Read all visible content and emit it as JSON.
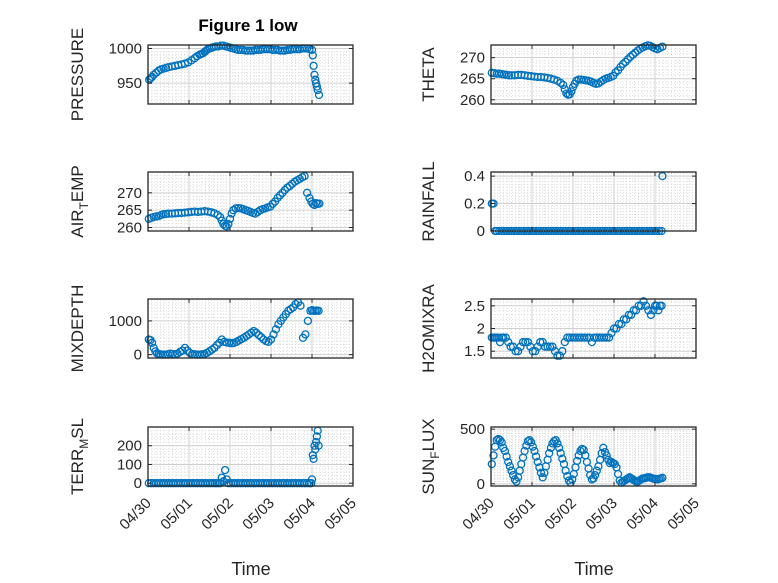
{
  "figure": {
    "title": "Figure 1 low",
    "xlabel": "Time"
  },
  "chart_data": [
    {
      "type": "scatter",
      "ylabel": "PRESSURE",
      "ylim": [
        920,
        1005
      ],
      "yticks": [
        950,
        1000
      ],
      "xlim": [
        0,
        5
      ],
      "xticks": [
        "04/30",
        "05/01",
        "05/02",
        "05/03",
        "05/04",
        "05/05"
      ],
      "show_xticks": false,
      "x": [
        0.03,
        0.06,
        0.1,
        0.14,
        0.2,
        0.26,
        0.32,
        0.38,
        0.44,
        0.5,
        0.58,
        0.66,
        0.74,
        0.82,
        0.9,
        0.98,
        1.06,
        1.14,
        1.2,
        1.26,
        1.3,
        1.34,
        1.38,
        1.42,
        1.46,
        1.5,
        1.55,
        1.6,
        1.66,
        1.72,
        1.78,
        1.84,
        1.9,
        1.96,
        2.02,
        2.08,
        2.14,
        2.2,
        2.26,
        2.32,
        2.38,
        2.44,
        2.5,
        2.56,
        2.62,
        2.68,
        2.74,
        2.8,
        2.86,
        2.92,
        2.98,
        3.04,
        3.1,
        3.16,
        3.22,
        3.28,
        3.34,
        3.4,
        3.46,
        3.52,
        3.58,
        3.64,
        3.7,
        3.76,
        3.82,
        3.88,
        3.94,
        4.0,
        4.02,
        4.04,
        4.06,
        4.08,
        4.1,
        4.12,
        4.14,
        4.17
      ],
      "y": [
        955,
        957,
        959,
        962,
        965,
        968,
        970,
        971,
        972,
        973,
        974,
        975,
        976,
        977,
        978,
        980,
        983,
        986,
        989,
        991,
        992,
        993,
        995,
        997,
        999,
        1000,
        1001,
        1002,
        1003,
        1003,
        1004,
        1004,
        1003,
        1002,
        1001,
        1000,
        999,
        998,
        998,
        998,
        997,
        997,
        997,
        997,
        998,
        998,
        998,
        999,
        999,
        999,
        999,
        998,
        998,
        998,
        997,
        997,
        997,
        998,
        998,
        999,
        999,
        999,
        999,
        1000,
        1000,
        1000,
        999,
        998,
        990,
        975,
        962,
        955,
        950,
        945,
        940,
        933
      ]
    },
    {
      "type": "scatter",
      "ylabel": "THETA",
      "ylim": [
        259,
        273
      ],
      "yticks": [
        260,
        265,
        270
      ],
      "xlim": [
        0,
        5
      ],
      "xticks": [
        "04/30",
        "05/01",
        "05/02",
        "05/03",
        "05/04",
        "05/05"
      ],
      "show_xticks": false,
      "x": [
        0.02,
        0.08,
        0.14,
        0.2,
        0.26,
        0.32,
        0.38,
        0.44,
        0.5,
        0.58,
        0.66,
        0.74,
        0.82,
        0.9,
        0.98,
        1.06,
        1.14,
        1.22,
        1.3,
        1.38,
        1.46,
        1.54,
        1.62,
        1.7,
        1.76,
        1.8,
        1.84,
        1.88,
        1.92,
        1.96,
        2.0,
        2.04,
        2.08,
        2.14,
        2.2,
        2.26,
        2.32,
        2.38,
        2.44,
        2.5,
        2.56,
        2.62,
        2.68,
        2.74,
        2.8,
        2.86,
        2.92,
        2.98,
        3.04,
        3.1,
        3.16,
        3.22,
        3.28,
        3.34,
        3.4,
        3.46,
        3.52,
        3.58,
        3.64,
        3.7,
        3.76,
        3.82,
        3.88,
        3.94,
        4.0,
        4.06,
        4.12,
        4.18
      ],
      "y": [
        266.4,
        266.3,
        266.2,
        266.2,
        266.1,
        266.0,
        265.9,
        265.8,
        265.8,
        265.8,
        265.9,
        265.9,
        265.8,
        265.7,
        265.6,
        265.5,
        265.4,
        265.4,
        265.3,
        265.2,
        265.0,
        264.8,
        264.5,
        264.0,
        263.5,
        262.5,
        261.5,
        261.2,
        261.3,
        262.0,
        263.0,
        263.8,
        264.5,
        264.8,
        264.8,
        264.7,
        264.6,
        264.5,
        264.3,
        264.0,
        263.8,
        263.9,
        264.3,
        264.7,
        265.0,
        265.2,
        265.4,
        265.7,
        266.5,
        267.0,
        267.8,
        268.5,
        269.0,
        269.6,
        270.2,
        270.7,
        271.2,
        271.7,
        272.1,
        272.4,
        272.7,
        272.9,
        272.8,
        272.5,
        272.2,
        272.0,
        272.3,
        272.6
      ]
    },
    {
      "type": "scatter",
      "ylabel": "AIR_TEMP",
      "ylim": [
        259,
        276
      ],
      "yticks": [
        260,
        265,
        270
      ],
      "xlim": [
        0,
        5
      ],
      "xticks": [
        "04/30",
        "05/01",
        "05/02",
        "05/03",
        "05/04",
        "05/05"
      ],
      "show_xticks": false,
      "x": [
        0.02,
        0.08,
        0.14,
        0.2,
        0.26,
        0.32,
        0.38,
        0.44,
        0.5,
        0.58,
        0.66,
        0.74,
        0.82,
        0.9,
        0.98,
        1.06,
        1.14,
        1.22,
        1.3,
        1.38,
        1.46,
        1.54,
        1.62,
        1.7,
        1.76,
        1.8,
        1.84,
        1.88,
        1.92,
        1.96,
        2.0,
        2.04,
        2.08,
        2.14,
        2.2,
        2.26,
        2.32,
        2.38,
        2.44,
        2.5,
        2.56,
        2.62,
        2.68,
        2.74,
        2.8,
        2.86,
        2.92,
        2.98,
        3.04,
        3.1,
        3.16,
        3.22,
        3.28,
        3.34,
        3.4,
        3.46,
        3.52,
        3.58,
        3.64,
        3.7,
        3.76,
        3.82,
        3.88,
        3.94,
        3.98,
        4.02,
        4.06,
        4.1,
        4.14,
        4.18
      ],
      "y": [
        262.5,
        262.8,
        263.0,
        263.2,
        263.3,
        263.6,
        263.8,
        263.9,
        264.0,
        264.0,
        264.1,
        264.2,
        264.2,
        264.3,
        264.4,
        264.5,
        264.6,
        264.5,
        264.6,
        264.7,
        264.6,
        264.4,
        264.1,
        263.6,
        263.0,
        262.0,
        261.0,
        260.5,
        260.3,
        261.0,
        262.5,
        264.0,
        265.0,
        265.5,
        265.6,
        265.5,
        265.3,
        265.0,
        264.8,
        264.5,
        264.2,
        264.0,
        264.5,
        265.0,
        265.3,
        265.5,
        265.8,
        266.0,
        266.8,
        267.5,
        268.5,
        269.3,
        270.0,
        270.8,
        271.5,
        272.0,
        272.6,
        273.2,
        273.6,
        274.0,
        274.5,
        274.8,
        270.0,
        268.5,
        267.5,
        266.8,
        266.5,
        267.0,
        266.8,
        266.9
      ]
    },
    {
      "type": "scatter",
      "ylabel": "RAINFALL",
      "ylim": [
        0,
        0.43
      ],
      "yticks": [
        0,
        0.2,
        0.4
      ],
      "xlim": [
        0,
        5
      ],
      "xticks": [
        "04/30",
        "05/01",
        "05/02",
        "05/03",
        "05/04",
        "05/05"
      ],
      "show_xticks": false,
      "x": [
        0.02,
        0.06,
        0.1,
        0.14,
        0.2,
        0.26,
        0.32,
        0.38,
        0.44,
        0.5,
        0.56,
        0.62,
        0.68,
        0.74,
        0.8,
        0.86,
        0.92,
        0.98,
        1.04,
        1.1,
        1.16,
        1.22,
        1.28,
        1.34,
        1.4,
        1.46,
        1.52,
        1.58,
        1.64,
        1.7,
        1.76,
        1.82,
        1.88,
        1.94,
        2.0,
        2.06,
        2.12,
        2.18,
        2.24,
        2.3,
        2.36,
        2.42,
        2.48,
        2.54,
        2.6,
        2.66,
        2.72,
        2.78,
        2.84,
        2.9,
        2.96,
        3.02,
        3.08,
        3.14,
        3.2,
        3.26,
        3.32,
        3.38,
        3.44,
        3.5,
        3.56,
        3.62,
        3.68,
        3.74,
        3.8,
        3.86,
        3.92,
        3.98,
        4.04,
        4.1,
        4.16,
        4.18
      ],
      "y": [
        0.2,
        0.2,
        0,
        0,
        0,
        0,
        0,
        0,
        0,
        0,
        0,
        0,
        0,
        0,
        0,
        0,
        0,
        0,
        0,
        0,
        0,
        0,
        0,
        0,
        0,
        0,
        0,
        0,
        0,
        0,
        0,
        0,
        0,
        0,
        0,
        0,
        0,
        0,
        0,
        0,
        0,
        0,
        0,
        0,
        0,
        0,
        0,
        0,
        0,
        0,
        0,
        0,
        0,
        0,
        0,
        0,
        0,
        0,
        0,
        0,
        0,
        0,
        0,
        0,
        0,
        0,
        0,
        0,
        0,
        0,
        0,
        0.4
      ]
    },
    {
      "type": "scatter",
      "ylabel": "MIXDEPTH",
      "ylim": [
        -100,
        1650
      ],
      "yticks": [
        0,
        1000
      ],
      "xlim": [
        0,
        5
      ],
      "xticks": [
        "04/30",
        "05/01",
        "05/02",
        "05/03",
        "05/04",
        "05/05"
      ],
      "show_xticks": false,
      "x": [
        0.02,
        0.06,
        0.1,
        0.14,
        0.18,
        0.22,
        0.26,
        0.3,
        0.36,
        0.42,
        0.48,
        0.54,
        0.6,
        0.66,
        0.72,
        0.78,
        0.84,
        0.9,
        0.96,
        1.02,
        1.08,
        1.14,
        1.2,
        1.26,
        1.32,
        1.38,
        1.44,
        1.5,
        1.56,
        1.62,
        1.68,
        1.74,
        1.8,
        1.86,
        1.92,
        1.98,
        2.04,
        2.1,
        2.16,
        2.22,
        2.28,
        2.34,
        2.4,
        2.46,
        2.52,
        2.58,
        2.64,
        2.7,
        2.76,
        2.82,
        2.88,
        2.94,
        3.0,
        3.06,
        3.12,
        3.18,
        3.24,
        3.3,
        3.36,
        3.42,
        3.48,
        3.54,
        3.6,
        3.66,
        3.72,
        3.78,
        3.84,
        3.9,
        3.96,
        4.0,
        4.04,
        4.08,
        4.12,
        4.16
      ],
      "y": [
        450,
        430,
        350,
        200,
        100,
        40,
        20,
        10,
        0,
        0,
        10,
        30,
        20,
        10,
        30,
        80,
        120,
        200,
        120,
        50,
        20,
        10,
        0,
        0,
        10,
        20,
        50,
        100,
        150,
        200,
        280,
        350,
        450,
        380,
        360,
        350,
        340,
        350,
        380,
        420,
        460,
        500,
        550,
        600,
        650,
        700,
        650,
        580,
        520,
        450,
        400,
        380,
        450,
        600,
        750,
        900,
        1000,
        1100,
        1200,
        1300,
        1350,
        1400,
        1500,
        1550,
        1450,
        500,
        600,
        1000,
        1300,
        1320,
        1300,
        1300,
        1310,
        1300
      ]
    },
    {
      "type": "scatter",
      "ylabel": "H2OMIXRA",
      "ylim": [
        1.35,
        2.65
      ],
      "yticks": [
        1.5,
        2,
        2.5
      ],
      "xlim": [
        0,
        5
      ],
      "xticks": [
        "04/30",
        "05/01",
        "05/02",
        "05/03",
        "05/04",
        "05/05"
      ],
      "show_xticks": false,
      "x": [
        0.02,
        0.06,
        0.1,
        0.14,
        0.18,
        0.22,
        0.26,
        0.3,
        0.36,
        0.42,
        0.48,
        0.54,
        0.6,
        0.66,
        0.72,
        0.78,
        0.84,
        0.9,
        0.96,
        1.02,
        1.08,
        1.14,
        1.2,
        1.26,
        1.32,
        1.38,
        1.44,
        1.5,
        1.56,
        1.62,
        1.68,
        1.74,
        1.8,
        1.86,
        1.92,
        1.98,
        2.04,
        2.1,
        2.16,
        2.22,
        2.28,
        2.34,
        2.4,
        2.46,
        2.52,
        2.58,
        2.64,
        2.7,
        2.76,
        2.82,
        2.88,
        2.94,
        3.0,
        3.06,
        3.12,
        3.18,
        3.24,
        3.3,
        3.36,
        3.42,
        3.48,
        3.54,
        3.6,
        3.66,
        3.72,
        3.78,
        3.84,
        3.9,
        3.96,
        4.0,
        4.04,
        4.08,
        4.12,
        4.16
      ],
      "y": [
        1.8,
        1.8,
        1.8,
        1.8,
        1.8,
        1.7,
        1.8,
        1.8,
        1.8,
        1.7,
        1.6,
        1.6,
        1.5,
        1.5,
        1.6,
        1.7,
        1.7,
        1.7,
        1.6,
        1.5,
        1.5,
        1.6,
        1.7,
        1.7,
        1.6,
        1.6,
        1.6,
        1.6,
        1.5,
        1.4,
        1.4,
        1.5,
        1.7,
        1.8,
        1.8,
        1.8,
        1.8,
        1.8,
        1.8,
        1.8,
        1.8,
        1.8,
        1.8,
        1.7,
        1.8,
        1.8,
        1.8,
        1.8,
        1.8,
        1.8,
        1.8,
        1.9,
        2.0,
        2.0,
        2.1,
        2.1,
        2.2,
        2.2,
        2.3,
        2.3,
        2.4,
        2.4,
        2.5,
        2.5,
        2.6,
        2.5,
        2.4,
        2.3,
        2.4,
        2.5,
        2.5,
        2.4,
        2.5,
        2.5
      ]
    },
    {
      "type": "scatter",
      "ylabel": "TERR_MSL",
      "ylim": [
        -15,
        300
      ],
      "yticks": [
        0,
        100,
        200
      ],
      "xlim": [
        0,
        5
      ],
      "xticks": [
        "04/30",
        "05/01",
        "05/02",
        "05/03",
        "05/04",
        "05/05"
      ],
      "show_xticks": true,
      "x": [
        0.02,
        0.08,
        0.14,
        0.2,
        0.26,
        0.32,
        0.38,
        0.44,
        0.5,
        0.56,
        0.62,
        0.68,
        0.74,
        0.8,
        0.86,
        0.92,
        0.98,
        1.04,
        1.1,
        1.16,
        1.22,
        1.28,
        1.34,
        1.4,
        1.46,
        1.52,
        1.58,
        1.64,
        1.68,
        1.72,
        1.76,
        1.8,
        1.84,
        1.88,
        1.92,
        1.96,
        2.02,
        2.08,
        2.14,
        2.2,
        2.26,
        2.32,
        2.38,
        2.44,
        2.5,
        2.56,
        2.62,
        2.68,
        2.74,
        2.8,
        2.86,
        2.92,
        2.98,
        3.04,
        3.1,
        3.16,
        3.22,
        3.28,
        3.34,
        3.4,
        3.46,
        3.52,
        3.58,
        3.64,
        3.7,
        3.76,
        3.82,
        3.88,
        3.94,
        3.98,
        4.0,
        4.02,
        4.04,
        4.06,
        4.08,
        4.1,
        4.12,
        4.14,
        4.16
      ],
      "y": [
        0,
        0,
        0,
        0,
        0,
        0,
        0,
        0,
        0,
        0,
        0,
        0,
        0,
        0,
        0,
        0,
        0,
        0,
        0,
        0,
        0,
        0,
        0,
        0,
        0,
        0,
        0,
        0,
        0,
        0,
        0,
        30,
        10,
        70,
        20,
        0,
        0,
        0,
        0,
        0,
        0,
        0,
        0,
        0,
        0,
        0,
        0,
        0,
        0,
        0,
        0,
        0,
        0,
        0,
        0,
        0,
        0,
        0,
        0,
        0,
        0,
        0,
        0,
        0,
        0,
        0,
        0,
        0,
        0,
        0,
        20,
        150,
        130,
        200,
        180,
        220,
        250,
        280,
        200
      ]
    },
    {
      "type": "scatter",
      "ylabel": "SUN_FLUX",
      "ylim": [
        -20,
        520
      ],
      "yticks": [
        0,
        500
      ],
      "xlim": [
        0,
        5
      ],
      "xticks": [
        "04/30",
        "05/01",
        "05/02",
        "05/03",
        "05/04",
        "05/05"
      ],
      "show_xticks": true,
      "x": [
        0.02,
        0.06,
        0.1,
        0.14,
        0.18,
        0.22,
        0.26,
        0.3,
        0.34,
        0.38,
        0.42,
        0.46,
        0.5,
        0.54,
        0.58,
        0.62,
        0.66,
        0.7,
        0.74,
        0.78,
        0.82,
        0.86,
        0.9,
        0.94,
        0.98,
        1.02,
        1.06,
        1.1,
        1.14,
        1.18,
        1.22,
        1.26,
        1.3,
        1.34,
        1.38,
        1.42,
        1.46,
        1.5,
        1.54,
        1.58,
        1.62,
        1.66,
        1.7,
        1.74,
        1.78,
        1.82,
        1.86,
        1.9,
        1.94,
        1.98,
        2.02,
        2.06,
        2.1,
        2.14,
        2.18,
        2.22,
        2.26,
        2.3,
        2.34,
        2.38,
        2.42,
        2.46,
        2.5,
        2.54,
        2.58,
        2.62,
        2.66,
        2.7,
        2.74,
        2.78,
        2.82,
        2.86,
        2.9,
        2.94,
        2.98,
        3.02,
        3.06,
        3.1,
        3.14,
        3.18,
        3.22,
        3.26,
        3.3,
        3.34,
        3.38,
        3.42,
        3.46,
        3.5,
        3.54,
        3.58,
        3.62,
        3.66,
        3.7,
        3.74,
        3.78,
        3.82,
        3.86,
        3.9,
        3.94,
        3.98,
        4.02,
        4.06,
        4.1,
        4.14,
        4.18
      ],
      "y": [
        180,
        260,
        340,
        400,
        410,
        400,
        380,
        330,
        300,
        250,
        200,
        160,
        120,
        80,
        40,
        20,
        60,
        120,
        180,
        240,
        300,
        350,
        390,
        400,
        380,
        340,
        300,
        250,
        200,
        150,
        100,
        60,
        100,
        160,
        220,
        280,
        330,
        370,
        390,
        400,
        370,
        330,
        280,
        230,
        180,
        120,
        70,
        30,
        10,
        40,
        90,
        150,
        210,
        260,
        300,
        320,
        310,
        260,
        200,
        140,
        80,
        40,
        50,
        80,
        120,
        160,
        220,
        280,
        330,
        290,
        260,
        220,
        190,
        200,
        190,
        180,
        150,
        90,
        30,
        10,
        20,
        30,
        40,
        50,
        60,
        50,
        40,
        30,
        20,
        20,
        30,
        40,
        50,
        50,
        55,
        60,
        60,
        55,
        50,
        45,
        45,
        40,
        45,
        50,
        55
      ]
    }
  ]
}
